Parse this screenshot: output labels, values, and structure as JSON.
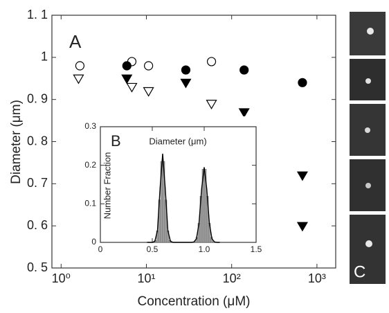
{
  "chart_data": [
    {
      "type": "scatter",
      "annotation": "A",
      "ylabel": "Diameter (μm)",
      "xlabel": "Concentration (μM)",
      "xscale": "log",
      "xlim": [
        0.78,
        1660
      ],
      "ylim": [
        0.5,
        1.1
      ],
      "xticks": [
        {
          "value": 1,
          "label": "10⁰"
        },
        {
          "value": 10,
          "label": "10¹"
        },
        {
          "value": 100,
          "label": "10²"
        },
        {
          "value": 1000,
          "label": "10³"
        }
      ],
      "yticks": [
        {
          "value": 0.5,
          "label": "0. 5"
        },
        {
          "value": 0.6,
          "label": "0. 6"
        },
        {
          "value": 0.7,
          "label": "0. 7"
        },
        {
          "value": 0.8,
          "label": "0. 8"
        },
        {
          "value": 0.9,
          "label": "0. 9"
        },
        1,
        {
          "value": 1.1,
          "label": "1. 1"
        }
      ],
      "series": [
        {
          "marker": "circle-open",
          "color": "#000000",
          "x": [
            1.66,
            6.75,
            10.6,
            58
          ],
          "values": [
            0.98,
            0.99,
            0.98,
            0.99
          ]
        },
        {
          "marker": "circle-filled",
          "color": "#000000",
          "x": [
            5.9,
            29,
            140,
            676
          ],
          "values": [
            0.98,
            0.97,
            0.97,
            0.94
          ]
        },
        {
          "marker": "triangle-open",
          "color": "#000000",
          "x": [
            1.6,
            6.75,
            10.6,
            58
          ],
          "values": [
            0.95,
            0.93,
            0.92,
            0.89
          ]
        },
        {
          "marker": "triangle-filled",
          "color": "#000000",
          "x": [
            5.9,
            29,
            140,
            676,
            676
          ],
          "values": [
            0.95,
            0.94,
            0.87,
            0.72,
            0.6
          ]
        }
      ]
    },
    {
      "type": "histogram",
      "annotation": "B",
      "xlabel": "Diameter (μm)",
      "ylabel": "Number Fraction",
      "xlim": [
        0,
        1.5
      ],
      "ylim": [
        0,
        0.3
      ],
      "xticks": [
        0,
        0.5,
        {
          "value": 1,
          "label": "1.0"
        },
        1.5
      ],
      "yticks": [
        0,
        0.1,
        0.2,
        0.3
      ],
      "color": "#a0a0a0",
      "bins": [
        0.5,
        0.52,
        0.54,
        0.56,
        0.58,
        0.6,
        0.62,
        0.64,
        0.66,
        0.68,
        0.7,
        0.72,
        0.74,
        0.76,
        0.78,
        0.8,
        0.82,
        0.84,
        0.86,
        0.88,
        0.9,
        0.92,
        0.94,
        0.96,
        0.98,
        1.0,
        1.02,
        1.04,
        1.06,
        1.08,
        1.1
      ],
      "counts": [
        0,
        0.005,
        0.03,
        0.11,
        0.21,
        0.21,
        0.11,
        0.03,
        0.005,
        0,
        0,
        0,
        0,
        0,
        0,
        0,
        0,
        0,
        0,
        0,
        0.002,
        0.013,
        0.05,
        0.12,
        0.19,
        0.19,
        0.12,
        0.05,
        0.013,
        0.002
      ],
      "fit": {
        "color": "#000000",
        "x": [
          0.45,
          0.475,
          0.5,
          0.525,
          0.55,
          0.575,
          0.6,
          0.625,
          0.65,
          0.675,
          0.7,
          0.725,
          0.75,
          0.775,
          0.8,
          0.825,
          0.85,
          0.875,
          0.9,
          0.925,
          0.95,
          0.975,
          1.0,
          1.025,
          1.05,
          1.075,
          1.1,
          1.125,
          1.15
        ],
        "values": [
          0,
          0,
          0,
          0.003,
          0.031,
          0.14,
          0.23,
          0.14,
          0.031,
          0.003,
          0,
          0,
          0,
          0,
          0,
          0,
          0,
          0,
          0.001,
          0.009,
          0.049,
          0.138,
          0.195,
          0.138,
          0.049,
          0.009,
          0.001,
          0,
          0
        ]
      }
    }
  ],
  "images": {
    "label": "C"
  }
}
